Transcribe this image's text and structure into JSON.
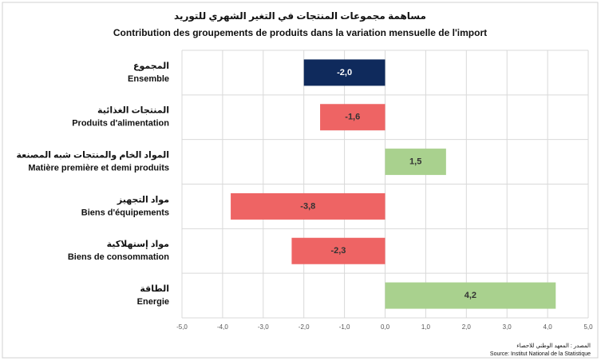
{
  "chart_data": {
    "type": "hbar",
    "title": "مساهمة مجموعات المنتجات في التغير الشهري للتوريد",
    "subtitle": "Contribution des groupements de produits dans la variation mensuelle de l'import",
    "categories_ar": [
      "المجموع",
      "المنتجات الغذائية",
      "المواد الخام والمنتجات شبه المصنعة",
      "مواد التجهيز",
      "مواد إستهلاكية",
      "الطاقة"
    ],
    "categories": [
      "Ensemble",
      "Produits d'alimentation",
      "Matière première et demi produits",
      "Biens d'équipements",
      "Biens de consommation",
      "Energie"
    ],
    "values": [
      -2.0,
      -1.6,
      1.5,
      -3.8,
      -2.3,
      4.2
    ],
    "value_labels": [
      "-2,0",
      "-1,6",
      "1,5",
      "-3,8",
      "-2,3",
      "4,2"
    ],
    "colors": [
      "#0f2a5c",
      "#ee6464",
      "#a9d18e",
      "#ee6464",
      "#ee6464",
      "#a9d18e"
    ],
    "xlim": [
      -5,
      5
    ],
    "xticks": [
      {
        "value": -5,
        "label": "-5,0"
      },
      {
        "value": -4,
        "label": "-4,0"
      },
      {
        "value": -3,
        "label": "-3,0"
      },
      {
        "value": -2,
        "label": "-2,0"
      },
      {
        "value": -1,
        "label": "-1,0"
      },
      {
        "value": 0,
        "label": "0,0"
      },
      {
        "value": 1,
        "label": "1,0"
      },
      {
        "value": 2,
        "label": "2,0"
      },
      {
        "value": 3,
        "label": "3,0"
      },
      {
        "value": 4,
        "label": "4,0"
      },
      {
        "value": 5,
        "label": "5,0"
      }
    ],
    "grid": true,
    "source_ar": "المصدر : المعهد الوطني للاحصاء",
    "source": "Source: Institut National de la Statistique"
  }
}
